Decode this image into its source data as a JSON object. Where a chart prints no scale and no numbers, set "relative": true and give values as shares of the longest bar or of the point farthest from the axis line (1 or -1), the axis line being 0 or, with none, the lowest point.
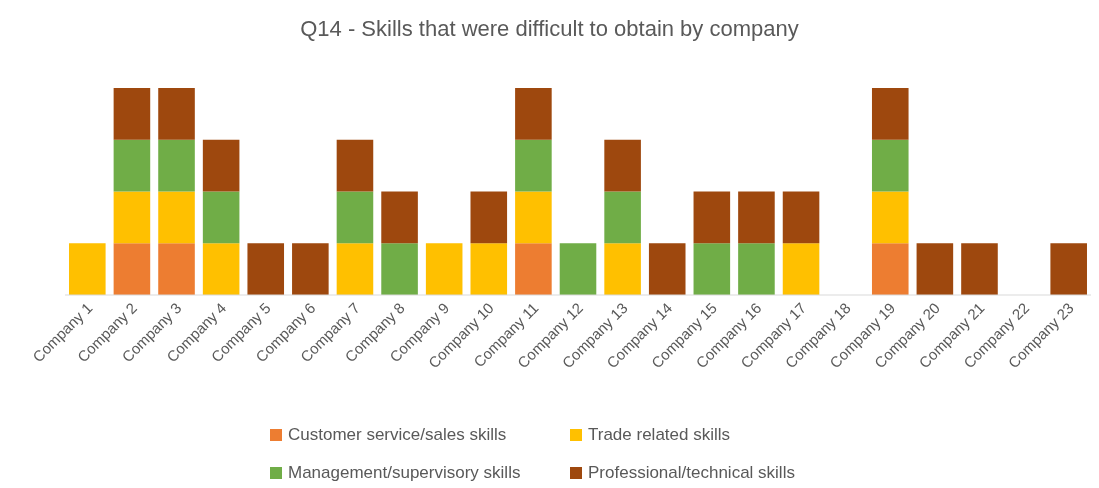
{
  "chart_data": {
    "type": "bar",
    "title": "Q14 - Skills that were difficult to obtain by company",
    "relative": true,
    "stacked": true,
    "legend": "bottom",
    "categories": [
      "Company 1",
      "Company 2",
      "Company 3",
      "Company 4",
      "Company 5",
      "Company 6",
      "Company 7",
      "Company 8",
      "Company 9",
      "Company 10",
      "Company 11",
      "Company 12",
      "Company 13",
      "Company 14",
      "Company 15",
      "Company 16",
      "Company 17",
      "Company 18",
      "Company 19",
      "Company 20",
      "Company 21",
      "Company 22",
      "Company 23"
    ],
    "series": [
      {
        "name": "Customer service/sales skills",
        "color": "#ed7d31",
        "values": [
          0,
          0.25,
          0.25,
          0,
          0,
          0,
          0,
          0,
          0,
          0,
          0.25,
          0,
          0,
          0,
          0,
          0,
          0,
          0,
          0.25,
          0,
          0,
          0,
          0
        ]
      },
      {
        "name": "Trade related skills",
        "color": "#ffc000",
        "values": [
          0.25,
          0.25,
          0.25,
          0.25,
          0,
          0,
          0.25,
          0,
          0.25,
          0.25,
          0.25,
          0,
          0.25,
          0,
          0,
          0,
          0.25,
          0,
          0.25,
          0,
          0,
          0,
          0
        ]
      },
      {
        "name": "Management/supervisory skills",
        "color": "#70ad47",
        "values": [
          0,
          0.25,
          0.25,
          0.25,
          0,
          0,
          0.25,
          0.25,
          0,
          0,
          0.25,
          0.25,
          0.25,
          0,
          0.25,
          0.25,
          0,
          0,
          0.25,
          0,
          0,
          0,
          0
        ]
      },
      {
        "name": "Professional/technical skills",
        "color": "#9e480e",
        "values": [
          0,
          0.25,
          0.25,
          0.25,
          0.25,
          0.25,
          0.25,
          0.25,
          0,
          0.25,
          0.25,
          0,
          0.25,
          0.25,
          0.25,
          0.25,
          0.25,
          0,
          0.25,
          0.25,
          0.25,
          0,
          0.25
        ]
      }
    ]
  }
}
